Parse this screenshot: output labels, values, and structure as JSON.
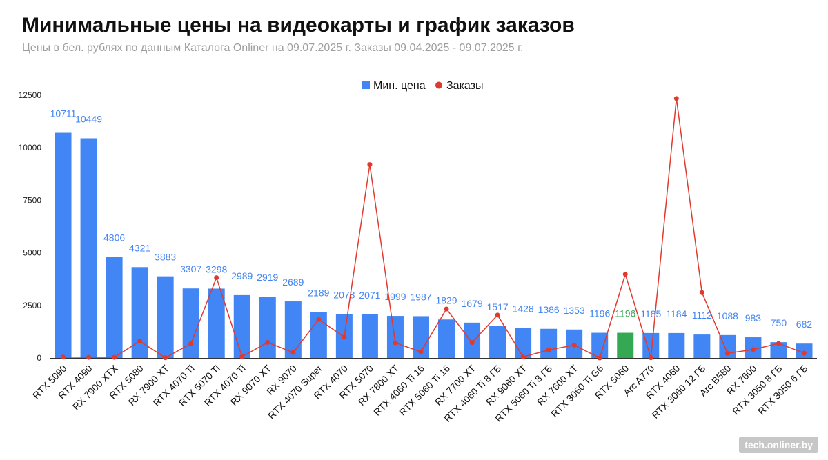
{
  "title": "Минимальные цены на видеокарты и график заказов",
  "subtitle": "Цены в бел. рублях по данным Каталога Onliner на 09.07.2025 г. Заказы 09.04.2025 - 09.07.2025 г.",
  "watermark": "tech.onliner.by",
  "colors": {
    "bar": "#4285f4",
    "highlight_bar": "#34a853",
    "line": "#e03a2f",
    "label": "#4285f4",
    "highlight_label": "#34a853"
  },
  "chart_data": {
    "type": "bar",
    "legend": {
      "position": "top-center",
      "items": [
        "Мин. цена",
        "Заказы"
      ]
    },
    "ylim": [
      0,
      12500
    ],
    "yticks": [
      0,
      2500,
      5000,
      7500,
      10000,
      12500
    ],
    "grid": false,
    "highlight_category": "RTX 5060",
    "categories": [
      "RTX 5090",
      "RTX 4090",
      "RX 7900 XTX",
      "RTX 5080",
      "RX 7900 XT",
      "RTX 4070 Ti",
      "RTX 5070 Ti",
      "RTX 4070 Ti",
      "RX 9070 XT",
      "RX 9070",
      "RTX 4070 Super",
      "RTX 4070",
      "RTX 5070",
      "RX 7800 XT",
      "RTX 4060 Ti 16",
      "RTX 5060 Ti 16",
      "RX 7700 XT",
      "RTX 4060 Ti 8 ГБ",
      "RX 9060 XT",
      "RTX 5060 Ti 8 ГБ",
      "RX 7600 XT",
      "RTX 3060 Ti G6",
      "RTX 5060",
      "Arc A770",
      "RTX 4060",
      "RTX 3060 12 ГБ",
      "Arc B580",
      "RX 7600",
      "RTX 3050 8 ГБ",
      "RTX 3050 6 ГБ"
    ],
    "series": [
      {
        "name": "Мин. цена",
        "type": "bar",
        "values": [
          10711,
          10449,
          4806,
          4321,
          3883,
          3307,
          3298,
          2989,
          2919,
          2689,
          2189,
          2078,
          2071,
          1999,
          1987,
          1829,
          1679,
          1517,
          1428,
          1386,
          1353,
          1196,
          1196,
          1185,
          1184,
          1112,
          1088,
          983,
          750,
          682
        ]
      },
      {
        "name": "Заказы",
        "type": "line",
        "values": [
          40,
          30,
          30,
          800,
          10,
          680,
          3820,
          60,
          740,
          260,
          1830,
          1000,
          9200,
          720,
          290,
          2330,
          730,
          2040,
          50,
          380,
          610,
          0,
          3980,
          10,
          12340,
          3110,
          220,
          400,
          690,
          230
        ]
      }
    ]
  }
}
